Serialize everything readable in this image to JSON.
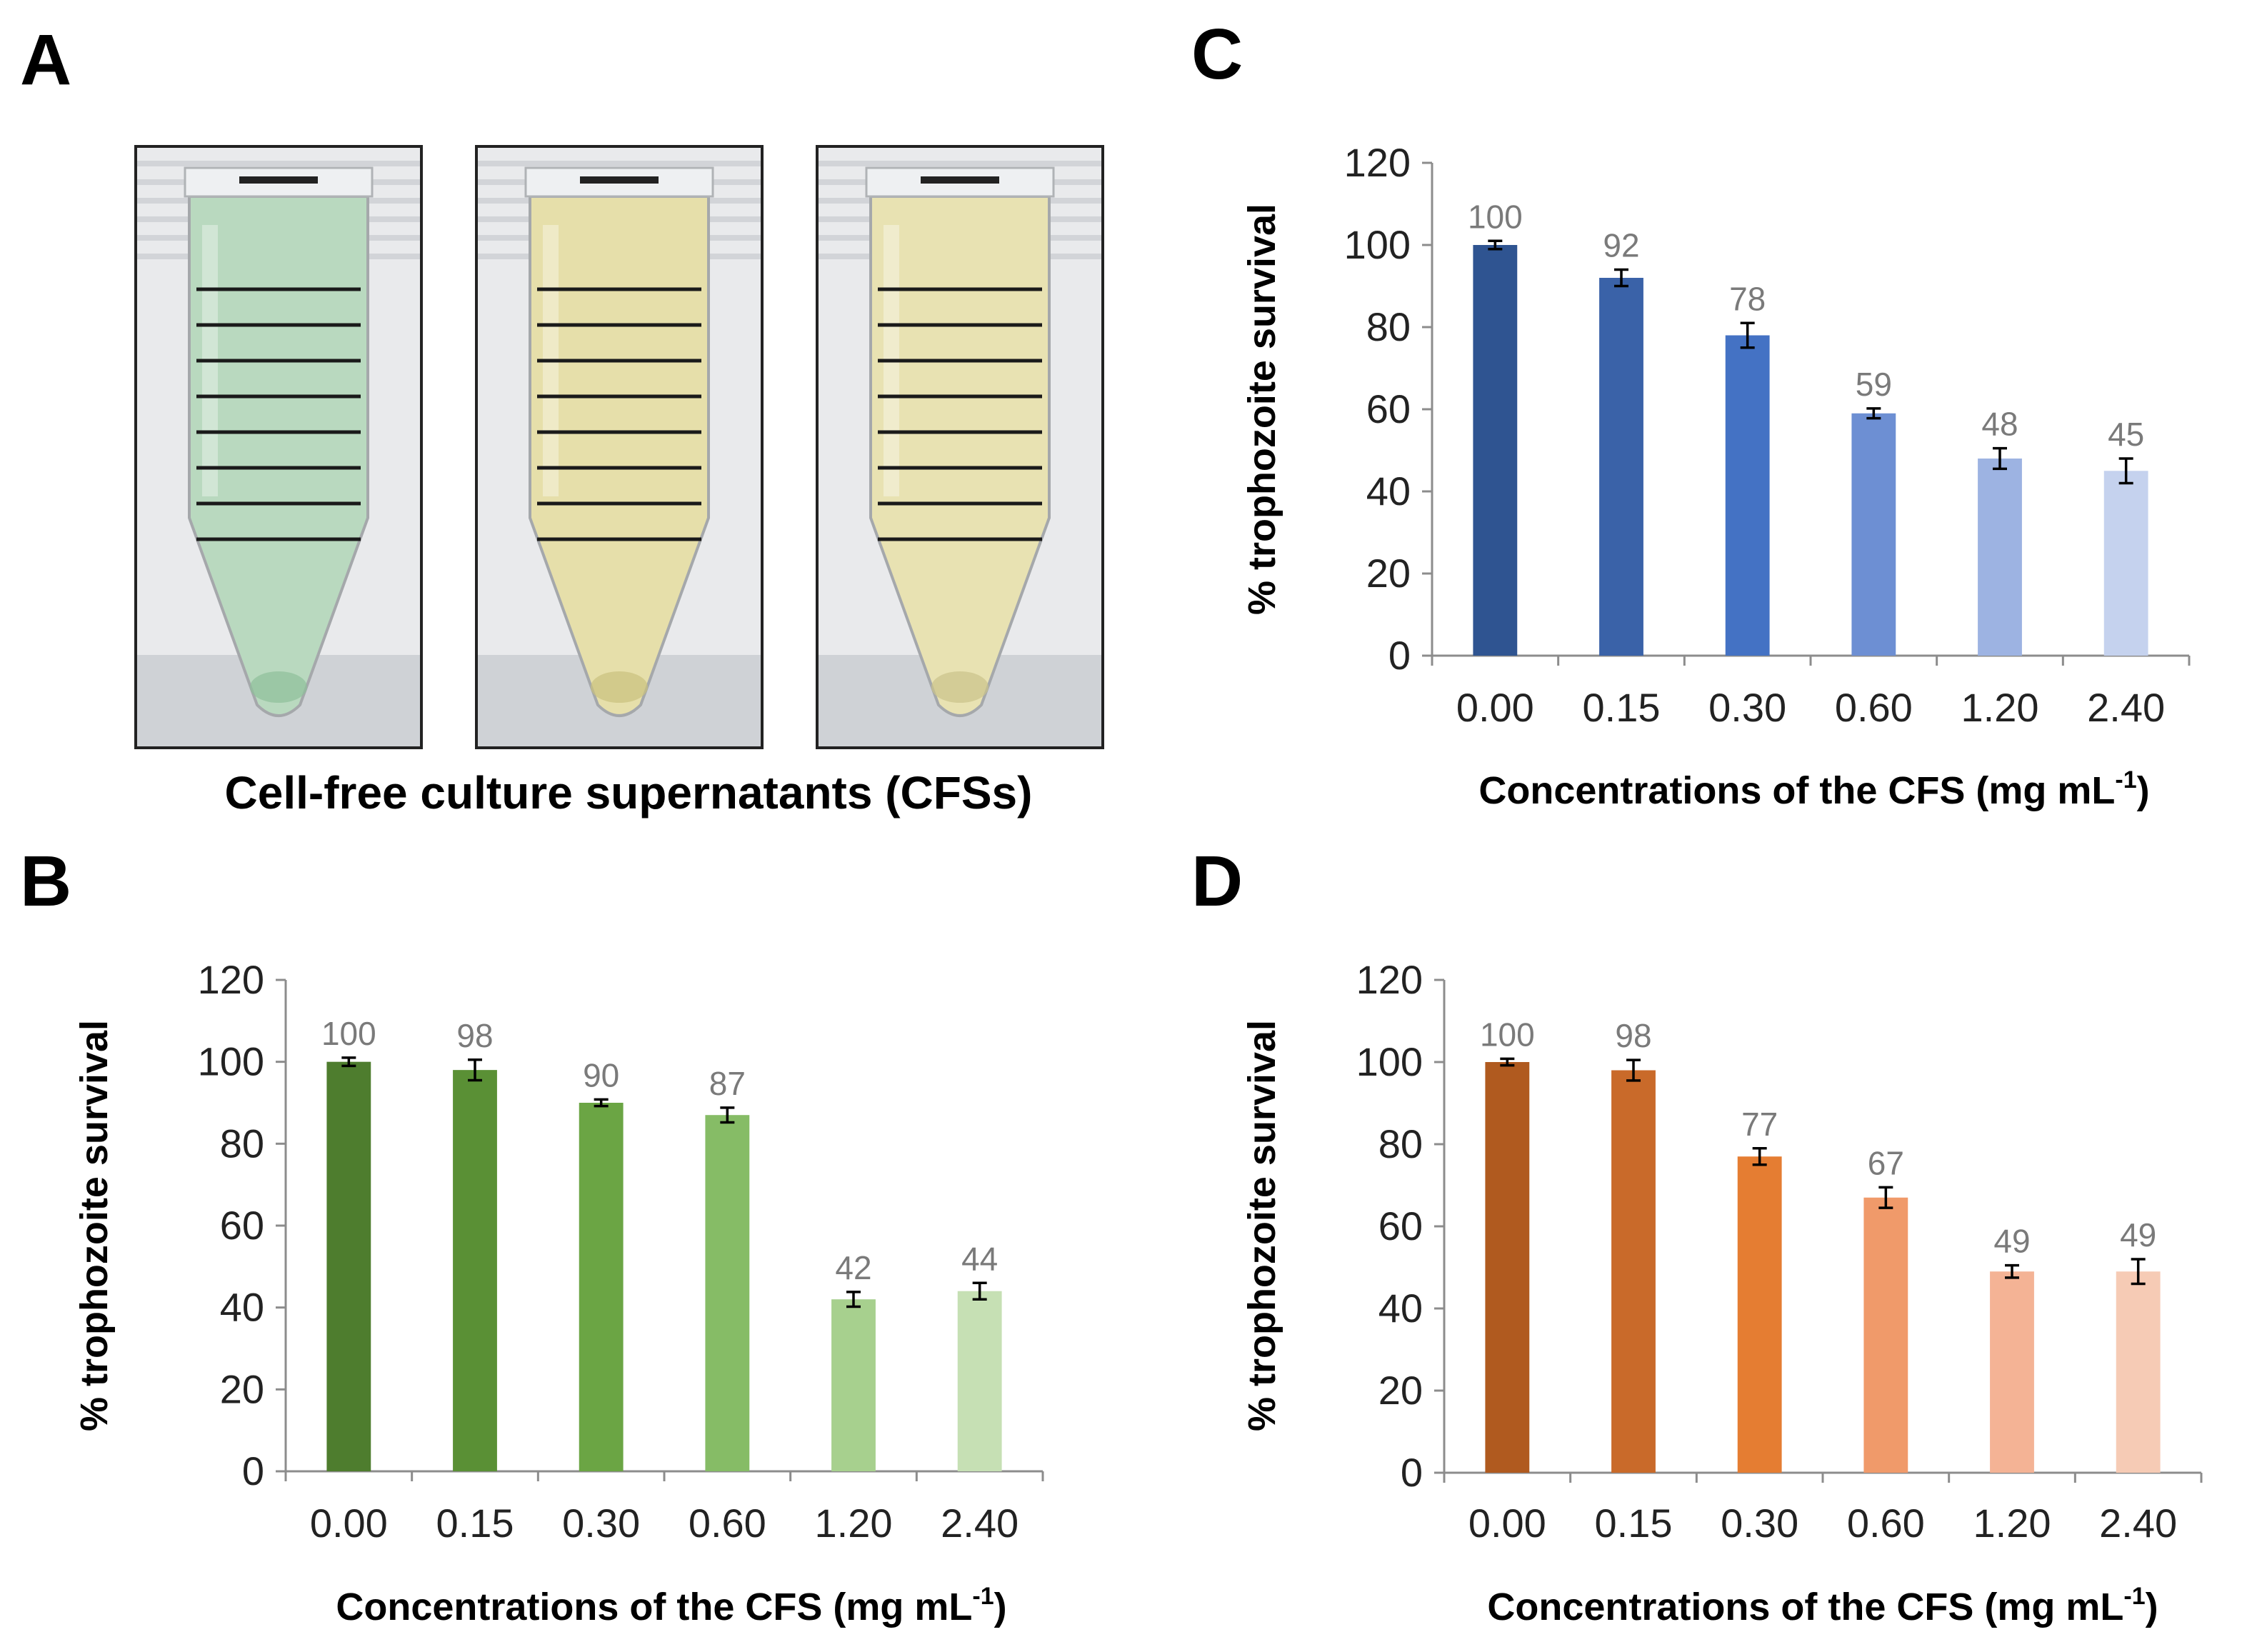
{
  "panels": {
    "A": "A",
    "B": "B",
    "C": "C",
    "D": "D"
  },
  "panel_a": {
    "caption": "Cell-free culture supernatants (CFSs)",
    "tubes": [
      {
        "liquid_color": "#b9d9bf",
        "liquid_dark": "#8fbf9a"
      },
      {
        "liquid_color": "#e6dfaa",
        "liquid_dark": "#c9c07e"
      },
      {
        "liquid_color": "#e8e2b2",
        "liquid_dark": "#cbc38a"
      }
    ]
  },
  "chart_data": [
    {
      "panel": "B",
      "type": "bar",
      "categories": [
        "0.00",
        "0.15",
        "0.30",
        "0.60",
        "1.20",
        "2.40"
      ],
      "values": [
        100,
        98,
        90,
        87,
        42,
        44
      ],
      "value_labels": [
        "100",
        "98",
        "90",
        "87",
        "42",
        "44"
      ],
      "errors": [
        1,
        2.5,
        0.8,
        1.8,
        1.8,
        2.0
      ],
      "colors": [
        "#4e7d2e",
        "#5a9035",
        "#6ba544",
        "#86bc66",
        "#a7d08e",
        "#c6e0b4"
      ],
      "ylabel": "% trophozoite survival",
      "xlabel_main": "Concentrations of the CFS (mg mL",
      "xlabel_sup": "-1",
      "xlabel_end": ")",
      "ylim": [
        0,
        120
      ],
      "yticks": [
        "0",
        "20",
        "40",
        "60",
        "80",
        "100",
        "120"
      ]
    },
    {
      "panel": "C",
      "type": "bar",
      "categories": [
        "0.00",
        "0.15",
        "0.30",
        "0.60",
        "1.20",
        "2.40"
      ],
      "values": [
        100,
        92,
        78,
        59,
        48,
        45
      ],
      "value_labels": [
        "100",
        "92",
        "78",
        "59",
        "48",
        "45"
      ],
      "errors": [
        1,
        2.0,
        3.0,
        1.2,
        2.5,
        3.0
      ],
      "colors": [
        "#2f5491",
        "#3a62a8",
        "#4472c4",
        "#6d8fd3",
        "#9db3e2",
        "#c5d2ee"
      ],
      "ylabel": "% trophozoite survival",
      "xlabel_main": "Concentrations of the CFS (mg mL",
      "xlabel_sup": "-1",
      "xlabel_end": ")",
      "ylim": [
        0,
        120
      ],
      "yticks": [
        "0",
        "20",
        "40",
        "60",
        "80",
        "100",
        "120"
      ]
    },
    {
      "panel": "D",
      "type": "bar",
      "categories": [
        "0.00",
        "0.15",
        "0.30",
        "0.60",
        "1.20",
        "2.40"
      ],
      "values": [
        100,
        98,
        77,
        67,
        49,
        49
      ],
      "value_labels": [
        "100",
        "98",
        "77",
        "67",
        "49",
        "49"
      ],
      "errors": [
        0.8,
        2.5,
        2.0,
        2.5,
        1.5,
        3.0
      ],
      "colors": [
        "#b05a1f",
        "#c96a2a",
        "#e57d32",
        "#f09a6a",
        "#f4b395",
        "#f6cbb5"
      ],
      "ylabel": "% trophozoite survival",
      "xlabel_main": "Concentrations of the CFS (mg mL",
      "xlabel_sup": "-1",
      "xlabel_end": ")",
      "ylim": [
        0,
        120
      ],
      "yticks": [
        "0",
        "20",
        "40",
        "60",
        "80",
        "100",
        "120"
      ]
    }
  ]
}
